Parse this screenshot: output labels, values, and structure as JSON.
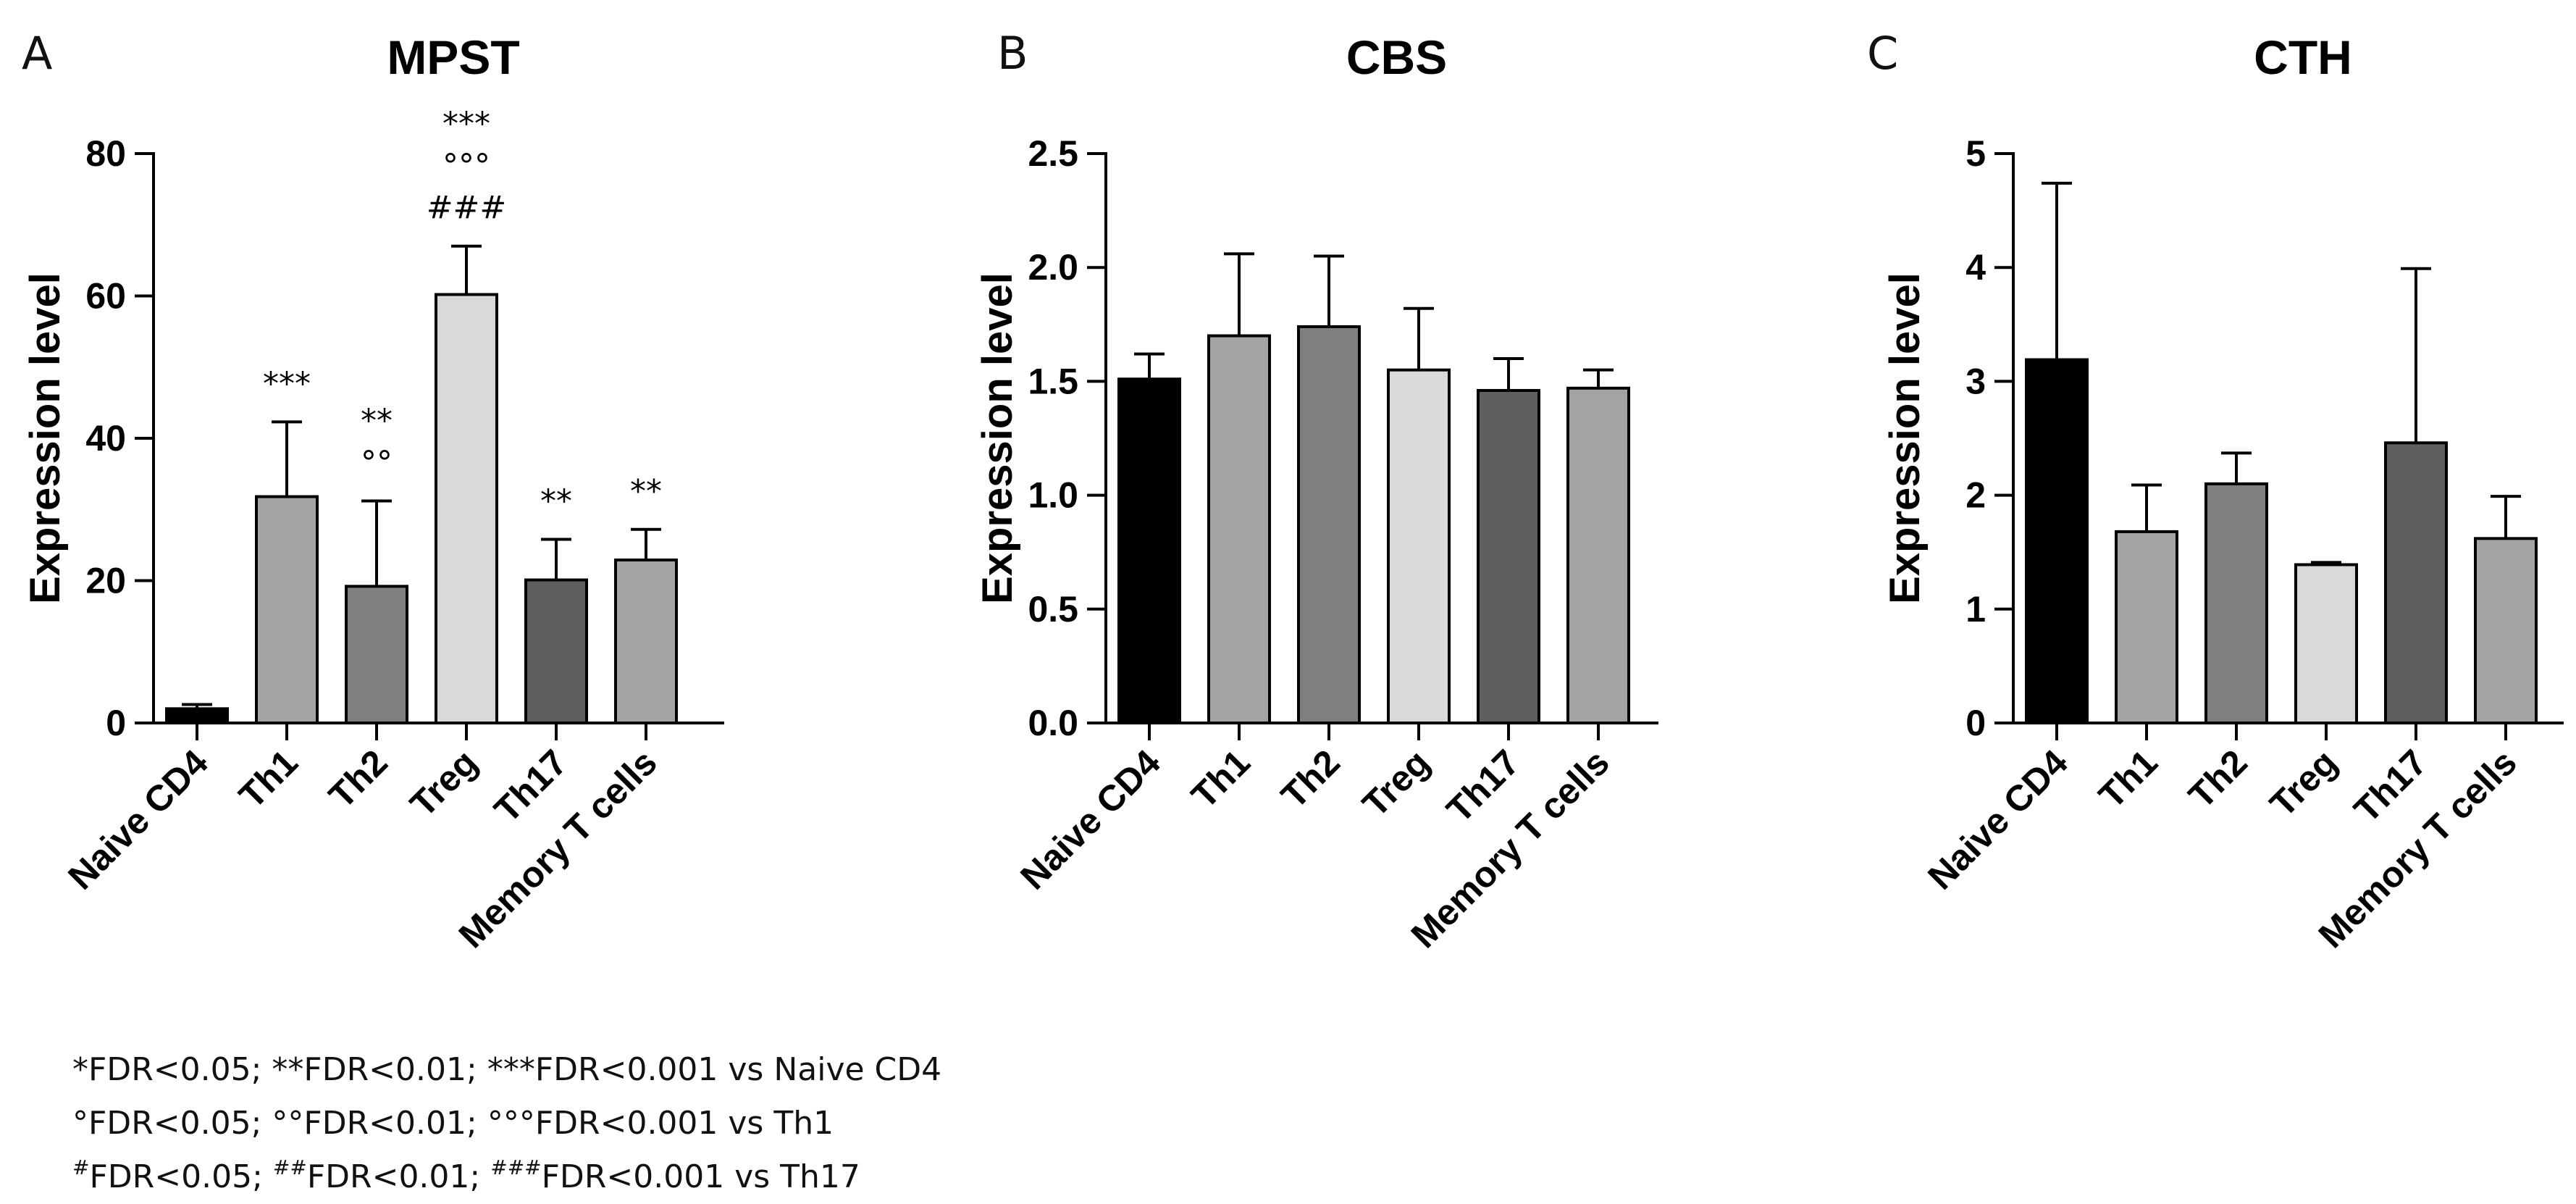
{
  "colors": {
    "naive": "#000000",
    "th1": "#a3a3a6",
    "th2": "#7f7f7f",
    "treg": "#d9d9d9",
    "th17": "#5f5f5f",
    "memory": "#a3a3a6",
    "axis": "#000000"
  },
  "chart_data": [
    {
      "panel": "A",
      "type": "bar",
      "title": "MPST",
      "ylabel": "Expression level",
      "xlabel": "",
      "categories": [
        "Naive CD4",
        "Th1",
        "Th2",
        "Treg",
        "Th17",
        "Memory T cells"
      ],
      "values": [
        2.0,
        31.8,
        19.2,
        60.2,
        20.1,
        22.9
      ],
      "errors": [
        0.6,
        10.5,
        12.0,
        6.8,
        5.7,
        4.3
      ],
      "ylim": [
        0,
        80
      ],
      "yticks": [
        0,
        20,
        40,
        60,
        80
      ],
      "ytick_labels": [
        "0",
        "20",
        "40",
        "60",
        "80"
      ],
      "annotations": [
        {
          "category": "Th1",
          "lines": [
            "***"
          ]
        },
        {
          "category": "Th2",
          "lines": [
            "**",
            "°°"
          ]
        },
        {
          "category": "Treg",
          "lines": [
            "***",
            "°°°",
            "###"
          ]
        },
        {
          "category": "Th17",
          "lines": [
            "**"
          ]
        },
        {
          "category": "Memory T cells",
          "lines": [
            "**"
          ]
        }
      ]
    },
    {
      "panel": "B",
      "type": "bar",
      "title": "CBS",
      "ylabel": "Expression level",
      "xlabel": "",
      "categories": [
        "Naive CD4",
        "Th1",
        "Th2",
        "Treg",
        "Th17",
        "Memory T cells"
      ],
      "values": [
        1.51,
        1.7,
        1.74,
        1.55,
        1.46,
        1.47
      ],
      "errors": [
        0.11,
        0.36,
        0.31,
        0.27,
        0.14,
        0.08
      ],
      "ylim": [
        0,
        2.5
      ],
      "yticks": [
        0,
        0.5,
        1.0,
        1.5,
        2.0,
        2.5
      ],
      "ytick_labels": [
        "0.0",
        "0.5",
        "1.0",
        "1.5",
        "2.0",
        "2.5"
      ],
      "annotations": []
    },
    {
      "panel": "C",
      "type": "bar",
      "title": "CTH",
      "ylabel": "Expression level",
      "xlabel": "",
      "categories": [
        "Naive CD4",
        "Th1",
        "Th2",
        "Treg",
        "Th17",
        "Memory T cells"
      ],
      "values": [
        3.19,
        1.68,
        2.1,
        1.39,
        2.46,
        1.62
      ],
      "errors": [
        1.55,
        0.41,
        0.27,
        0.02,
        1.53,
        0.37
      ],
      "ylim": [
        0,
        5
      ],
      "yticks": [
        0,
        1,
        2,
        3,
        4,
        5
      ],
      "ytick_labels": [
        "0",
        "1",
        "2",
        "3",
        "4",
        "5"
      ],
      "annotations": []
    }
  ],
  "legend": {
    "line1": "*FDR<0.05; **FDR<0.01; ***FDR<0.001 vs Naive CD4",
    "line2": "°FDR<0.05; °°FDR<0.01; °°°FDR<0.001 vs Th1",
    "line3": {
      "sup1": "#",
      "text1": "FDR<0.05; ",
      "sup2": "##",
      "text2": "FDR<0.01; ",
      "sup3": "###",
      "text3": "FDR<0.001 vs Th17"
    }
  }
}
